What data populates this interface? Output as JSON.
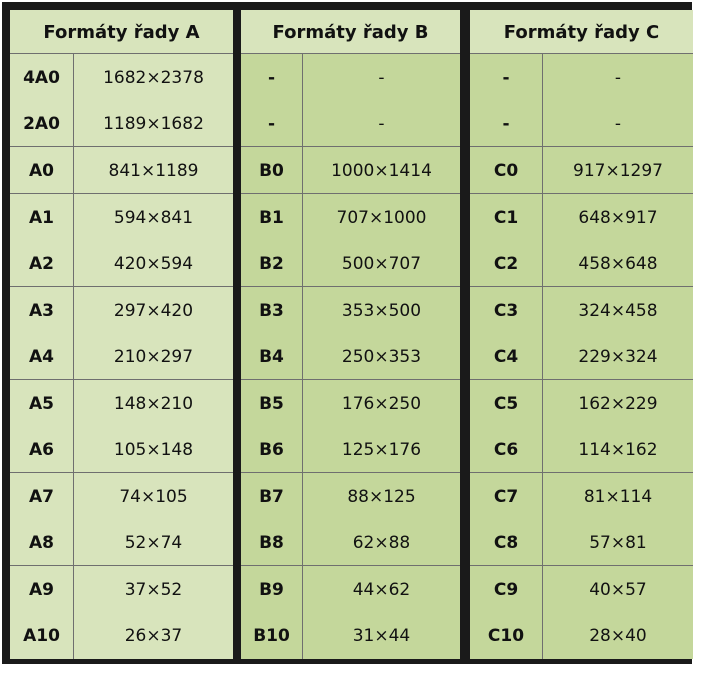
{
  "headers": [
    "Formáty řady A",
    "Formáty řady B",
    "Formáty řady C"
  ],
  "rows": [
    {
      "a_code": "4A0",
      "a_size": "1682×2378",
      "b_code": "-",
      "b_size": "-",
      "c_code": "-",
      "c_size": "-"
    },
    {
      "a_code": "2A0",
      "a_size": "1189×1682",
      "b_code": "-",
      "b_size": "-",
      "c_code": "-",
      "c_size": "-"
    },
    {
      "a_code": "A0",
      "a_size": "841×1189",
      "b_code": "B0",
      "b_size": "1000×1414",
      "c_code": "C0",
      "c_size": "917×1297"
    },
    {
      "a_code": "A1",
      "a_size": "594×841",
      "b_code": "B1",
      "b_size": "707×1000",
      "c_code": "C1",
      "c_size": "648×917"
    },
    {
      "a_code": "A2",
      "a_size": "420×594",
      "b_code": "B2",
      "b_size": "500×707",
      "c_code": "C2",
      "c_size": "458×648"
    },
    {
      "a_code": "A3",
      "a_size": "297×420",
      "b_code": "B3",
      "b_size": "353×500",
      "c_code": "C3",
      "c_size": "324×458"
    },
    {
      "a_code": "A4",
      "a_size": "210×297",
      "b_code": "B4",
      "b_size": "250×353",
      "c_code": "C4",
      "c_size": "229×324"
    },
    {
      "a_code": "A5",
      "a_size": "148×210",
      "b_code": "B5",
      "b_size": "176×250",
      "c_code": "C5",
      "c_size": "162×229"
    },
    {
      "a_code": "A6",
      "a_size": "105×148",
      "b_code": "B6",
      "b_size": "125×176",
      "c_code": "C6",
      "c_size": "114×162"
    },
    {
      "a_code": "A7",
      "a_size": "74×105",
      "b_code": "B7",
      "b_size": "88×125",
      "c_code": "C7",
      "c_size": "81×114"
    },
    {
      "a_code": "A8",
      "a_size": "52×74",
      "b_code": "B8",
      "b_size": "62×88",
      "c_code": "C8",
      "c_size": "57×81"
    },
    {
      "a_code": "A9",
      "a_size": "37×52",
      "b_code": "B9",
      "b_size": "44×62",
      "c_code": "C9",
      "c_size": "40×57"
    },
    {
      "a_code": "A10",
      "a_size": "26×37",
      "b_code": "B10",
      "b_size": "31×44",
      "c_code": "C10",
      "c_size": "28×40"
    }
  ],
  "colors": {
    "light_green": "#d8e4bc",
    "mid_green": "#c4d79b",
    "frame": "#1a1a1a",
    "grid": "#6f6f6f"
  }
}
